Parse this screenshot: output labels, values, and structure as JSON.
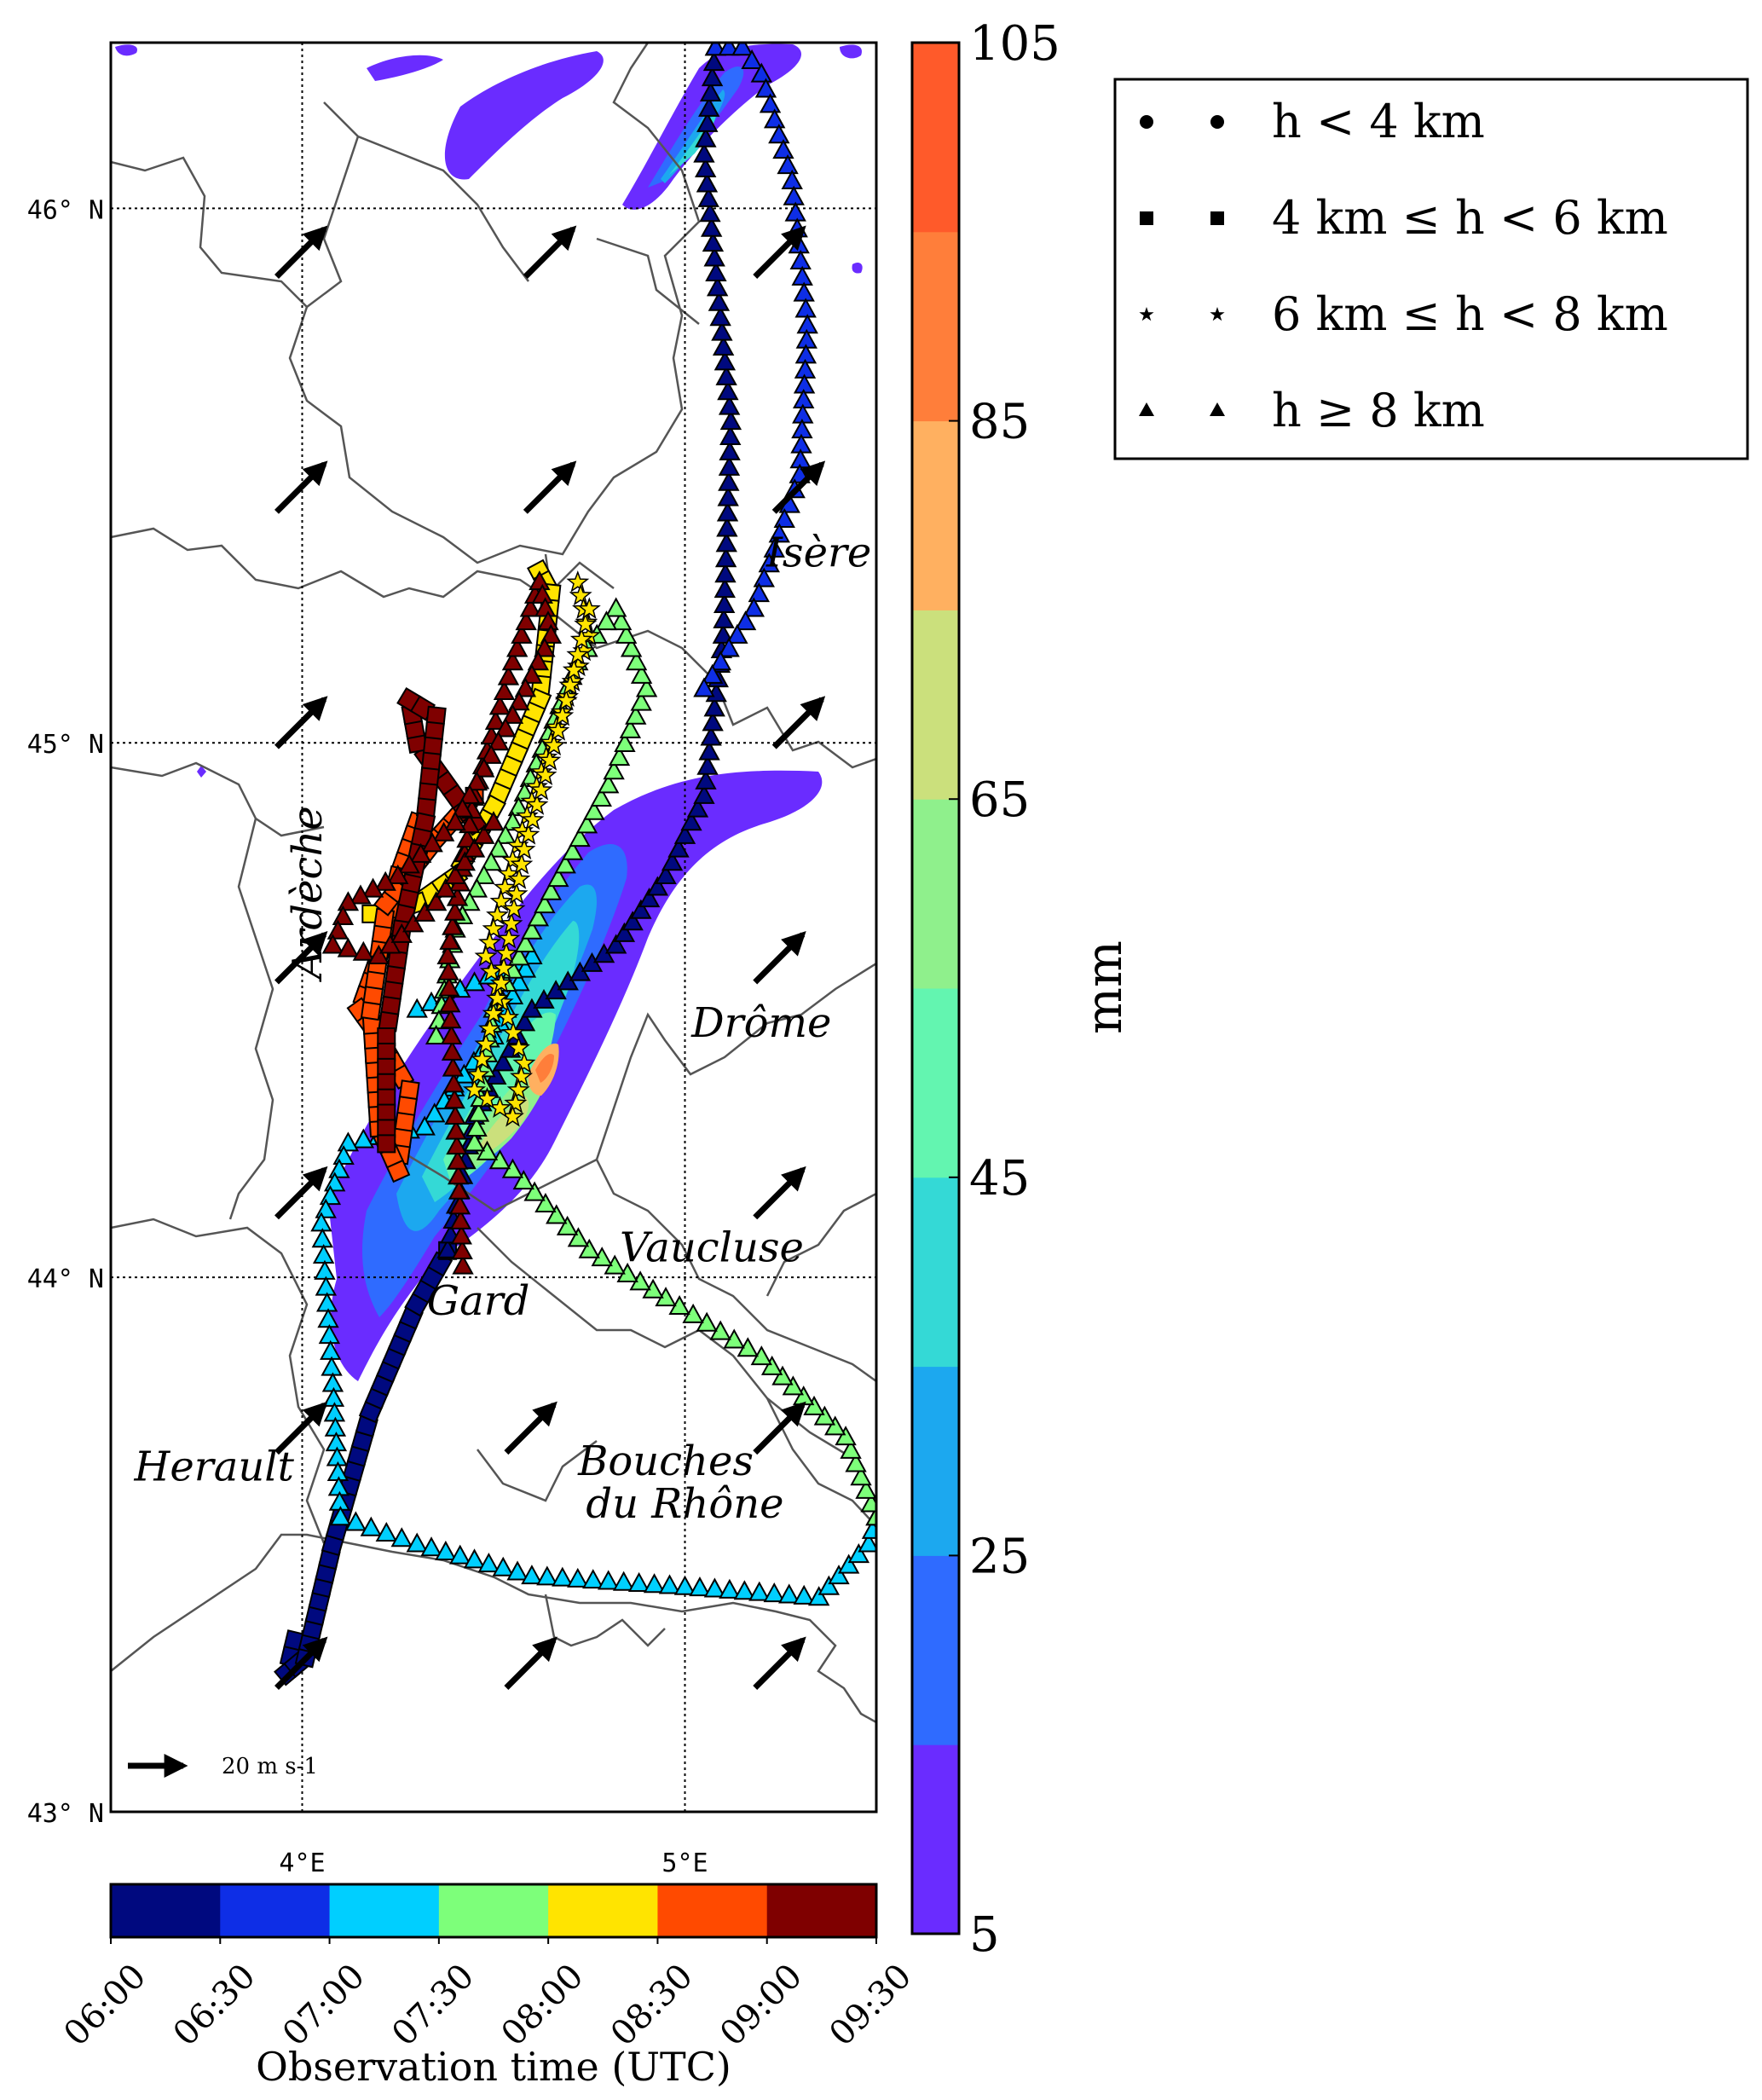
{
  "map": {
    "lat_ticks": [
      "46° N",
      "45° N",
      "44° N",
      "43° N"
    ],
    "lon_ticks": [
      "4°E",
      "5°E"
    ],
    "lat_range": [
      43.0,
      46.31
    ],
    "lon_range": [
      3.5,
      5.5
    ],
    "regions": [
      {
        "name": "Isère",
        "lon": 5.35,
        "lat": 45.33,
        "rotate": 0
      },
      {
        "name": "Ardèche",
        "lon": 4.05,
        "lat": 44.72,
        "rotate": -90
      },
      {
        "name": "Drôme",
        "lon": 5.2,
        "lat": 44.45,
        "rotate": 0
      },
      {
        "name": "Vaucluse",
        "lon": 5.07,
        "lat": 44.03,
        "rotate": 0
      },
      {
        "name": "Gard",
        "lon": 4.46,
        "lat": 43.93,
        "rotate": 0
      },
      {
        "name": "Herault",
        "lon": 3.77,
        "lat": 43.62,
        "rotate": 0
      },
      {
        "name": "Bouches",
        "lon": 4.95,
        "lat": 43.63,
        "rotate": 0
      },
      {
        "name": "du Rhône",
        "lon": 5.0,
        "lat": 43.55,
        "rotate": 0
      }
    ],
    "wind_reference_label": "20 m s-1",
    "wind_arrows": [
      {
        "lon": 4.0,
        "lat": 45.92
      },
      {
        "lon": 4.65,
        "lat": 45.92
      },
      {
        "lon": 5.25,
        "lat": 45.92
      },
      {
        "lon": 4.0,
        "lat": 45.48
      },
      {
        "lon": 4.65,
        "lat": 45.48
      },
      {
        "lon": 5.3,
        "lat": 45.48
      },
      {
        "lon": 4.0,
        "lat": 45.04
      },
      {
        "lon": 5.3,
        "lat": 45.04
      },
      {
        "lon": 4.0,
        "lat": 44.6
      },
      {
        "lon": 5.25,
        "lat": 44.6
      },
      {
        "lon": 4.0,
        "lat": 44.16
      },
      {
        "lon": 5.25,
        "lat": 44.16
      },
      {
        "lon": 4.0,
        "lat": 43.72
      },
      {
        "lon": 4.6,
        "lat": 43.72
      },
      {
        "lon": 5.25,
        "lat": 43.72
      },
      {
        "lon": 4.0,
        "lat": 43.28
      },
      {
        "lon": 4.6,
        "lat": 43.28
      },
      {
        "lon": 5.25,
        "lat": 43.28
      }
    ]
  },
  "precip_colorbar": {
    "unit": "mm",
    "ticks": [
      "105",
      "85",
      "65",
      "45",
      "25",
      "5"
    ],
    "levels": [
      5,
      15,
      25,
      35,
      45,
      55,
      65,
      75,
      85,
      95,
      105
    ],
    "colors": [
      "#6a2cff",
      "#2f6bff",
      "#1ca8ef",
      "#34d9d6",
      "#63f5b0",
      "#8ff08c",
      "#cbe07c",
      "#ffb060",
      "#ff7e3a",
      "#ff5a2a"
    ]
  },
  "time_colorbar": {
    "title": "Observation time (UTC)",
    "ticks": [
      "06:00",
      "06:30",
      "07:00",
      "07:30",
      "08:00",
      "08:30",
      "09:00",
      "09:30"
    ],
    "colors": [
      "#00097f",
      "#0e2ee6",
      "#00cfff",
      "#7dff7a",
      "#ffe400",
      "#ff4a00",
      "#7f0000"
    ]
  },
  "legend": {
    "entries": [
      {
        "marker": "circle",
        "label": "h < 4 km"
      },
      {
        "marker": "square",
        "label": "4 km ≤ h < 6 km"
      },
      {
        "marker": "star",
        "label": "6 km ≤ h < 8 km"
      },
      {
        "marker": "triangle",
        "label": "h ≥ 8 km"
      }
    ]
  },
  "tracks": [
    {
      "time_bin": "06:00-06:30",
      "marker": "square",
      "points": [
        [
          3.98,
          43.32
        ],
        [
          3.96,
          43.26
        ],
        [
          4.01,
          43.29
        ],
        [
          4.08,
          43.5
        ],
        [
          4.18,
          43.75
        ],
        [
          4.3,
          43.95
        ],
        [
          4.38,
          44.05
        ]
      ]
    },
    {
      "time_bin": "06:00-06:30",
      "marker": "triangle",
      "points": [
        [
          4.38,
          44.05
        ],
        [
          4.45,
          44.3
        ],
        [
          4.6,
          44.5
        ],
        [
          4.82,
          44.62
        ],
        [
          4.95,
          44.75
        ],
        [
          5.05,
          44.9
        ],
        [
          5.1,
          45.2
        ],
        [
          5.12,
          45.6
        ],
        [
          5.05,
          46.1
        ],
        [
          5.08,
          46.3
        ]
      ]
    },
    {
      "time_bin": "06:30-07:00",
      "marker": "triangle",
      "points": [
        [
          5.08,
          46.3
        ],
        [
          5.15,
          46.3
        ],
        [
          5.2,
          46.25
        ],
        [
          5.28,
          46.05
        ],
        [
          5.32,
          45.78
        ],
        [
          5.3,
          45.5
        ],
        [
          5.18,
          45.25
        ],
        [
          5.05,
          45.1
        ]
      ]
    },
    {
      "time_bin": "07:00-07:30",
      "marker": "triangle",
      "points": [
        [
          4.3,
          44.5
        ],
        [
          4.45,
          44.55
        ],
        [
          4.6,
          44.6
        ],
        [
          4.5,
          44.45
        ],
        [
          4.32,
          44.28
        ],
        [
          4.12,
          44.25
        ],
        [
          4.05,
          44.1
        ],
        [
          4.08,
          43.8
        ],
        [
          4.1,
          43.55
        ],
        [
          4.3,
          43.5
        ],
        [
          4.6,
          43.44
        ],
        [
          5.0,
          43.42
        ],
        [
          5.35,
          43.4
        ],
        [
          5.48,
          43.5
        ],
        [
          5.5,
          43.55
        ]
      ]
    },
    {
      "time_bin": "07:30-08:00",
      "marker": "triangle",
      "points": [
        [
          5.5,
          43.55
        ],
        [
          5.42,
          43.7
        ],
        [
          5.2,
          43.85
        ],
        [
          4.95,
          43.96
        ],
        [
          4.75,
          44.05
        ],
        [
          4.55,
          44.2
        ],
        [
          4.45,
          44.25
        ],
        [
          4.5,
          44.5
        ],
        [
          4.65,
          44.72
        ],
        [
          4.8,
          44.92
        ],
        [
          4.9,
          45.1
        ],
        [
          4.82,
          45.25
        ],
        [
          4.72,
          45.15
        ],
        [
          4.55,
          44.85
        ],
        [
          4.4,
          44.65
        ],
        [
          4.35,
          44.45
        ]
      ]
    },
    {
      "time_bin": "08:00-08:30",
      "marker": "square",
      "points": [
        [
          4.62,
          45.32
        ],
        [
          4.65,
          45.28
        ],
        [
          4.62,
          45.08
        ],
        [
          4.5,
          44.88
        ],
        [
          4.4,
          44.75
        ],
        [
          4.3,
          44.7
        ],
        [
          4.22,
          44.68
        ],
        [
          4.18,
          44.68
        ]
      ]
    },
    {
      "time_bin": "08:00-08:30",
      "marker": "star",
      "points": [
        [
          4.72,
          45.3
        ],
        [
          4.75,
          45.2
        ],
        [
          4.65,
          45.0
        ],
        [
          4.55,
          44.78
        ],
        [
          4.48,
          44.6
        ],
        [
          4.58,
          44.4
        ],
        [
          4.55,
          44.3
        ],
        [
          4.45,
          44.35
        ],
        [
          4.52,
          44.55
        ],
        [
          4.58,
          44.8
        ],
        [
          4.68,
          45.05
        ],
        [
          4.75,
          45.25
        ]
      ]
    },
    {
      "time_bin": "08:30-09:00",
      "marker": "square",
      "points": [
        [
          4.3,
          44.85
        ],
        [
          4.25,
          44.75
        ],
        [
          4.2,
          44.6
        ],
        [
          4.15,
          44.5
        ],
        [
          4.2,
          44.45
        ],
        [
          4.28,
          44.35
        ],
        [
          4.25,
          44.2
        ],
        [
          4.2,
          44.28
        ],
        [
          4.18,
          44.5
        ],
        [
          4.22,
          44.7
        ],
        [
          4.35,
          44.82
        ],
        [
          4.45,
          44.9
        ]
      ]
    },
    {
      "time_bin": "09:00-09:30",
      "marker": "square",
      "points": [
        [
          4.45,
          44.85
        ],
        [
          4.35,
          44.95
        ],
        [
          4.3,
          45.0
        ],
        [
          4.28,
          45.08
        ],
        [
          4.35,
          45.05
        ],
        [
          4.32,
          44.85
        ],
        [
          4.26,
          44.65
        ],
        [
          4.22,
          44.45
        ],
        [
          4.22,
          44.25
        ]
      ]
    },
    {
      "time_bin": "09:00-09:30",
      "marker": "triangle",
      "points": [
        [
          4.42,
          44.02
        ],
        [
          4.4,
          44.3
        ],
        [
          4.38,
          44.6
        ],
        [
          4.45,
          44.9
        ],
        [
          4.55,
          45.15
        ],
        [
          4.62,
          45.3
        ],
        [
          4.65,
          45.2
        ],
        [
          4.55,
          45.05
        ],
        [
          4.4,
          44.85
        ],
        [
          4.25,
          44.75
        ],
        [
          4.12,
          44.7
        ],
        [
          4.08,
          44.62
        ],
        [
          4.2,
          44.6
        ],
        [
          4.35,
          44.7
        ],
        [
          4.5,
          44.85
        ]
      ]
    }
  ]
}
